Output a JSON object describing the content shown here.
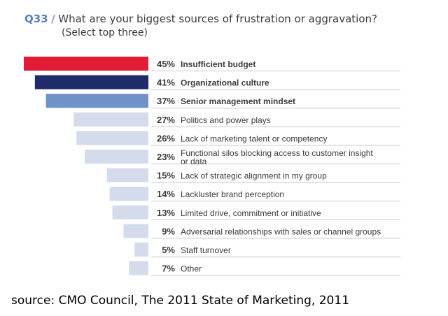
{
  "header": {
    "question_number": "Q33",
    "separator": "/",
    "question": "What are your biggest sources of frustration or aggravation?",
    "instruction": "(Select top three)"
  },
  "source": "source: CMO Council, The 2011 State of Marketing, 2011",
  "colors": {
    "highlight_1": "#e21b36",
    "highlight_2": "#1f2b6b",
    "highlight_3": "#6f93c9",
    "default_bar": "#d4dcec",
    "rule": "#c9c9c9",
    "text": "#3b3b3b"
  },
  "chart_data": {
    "type": "bar",
    "orientation": "horizontal",
    "unit": "%",
    "categories": [
      "Insufficient budget",
      "Organizational culture",
      "Senior management mindset",
      "Politics and power plays",
      "Lack of marketing talent or competency",
      "Functional silos blocking access to customer insight or data",
      "Lack of strategic alignment in my group",
      "Lackluster brand perception",
      "Limited drive, commitment or initiative",
      "Adversarial relationships with sales or channel groups",
      "Staff turnover",
      "Other"
    ],
    "category_lines": [
      [
        "Insufficient budget"
      ],
      [
        "Organizational culture"
      ],
      [
        "Senior management mindset"
      ],
      [
        "Politics and power plays"
      ],
      [
        "Lack of marketing talent or competency"
      ],
      [
        "Functional silos blocking access to customer insight",
        "or data"
      ],
      [
        "Lack of strategic alignment in my group"
      ],
      [
        "Lackluster brand perception"
      ],
      [
        "Limited drive, commitment or initiative"
      ],
      [
        "Adversarial relationships with sales or channel groups"
      ],
      [
        "Staff turnover"
      ],
      [
        "Other"
      ]
    ],
    "values": [
      45,
      41,
      37,
      27,
      26,
      23,
      15,
      14,
      13,
      9,
      5,
      7
    ],
    "value_labels": [
      "45%",
      "41%",
      "37%",
      "27%",
      "26%",
      "23%",
      "15%",
      "14%",
      "13%",
      "9%",
      "5%",
      "7%"
    ],
    "bold_labels": [
      true,
      true,
      true,
      false,
      false,
      false,
      false,
      false,
      false,
      false,
      false,
      false
    ],
    "bar_colors": [
      "#e21b36",
      "#1f2b6b",
      "#6f93c9",
      "#d4dcec",
      "#d4dcec",
      "#d4dcec",
      "#d4dcec",
      "#d4dcec",
      "#d4dcec",
      "#d4dcec",
      "#d4dcec",
      "#d4dcec"
    ],
    "xlim": [
      0,
      45
    ],
    "grid": false
  }
}
